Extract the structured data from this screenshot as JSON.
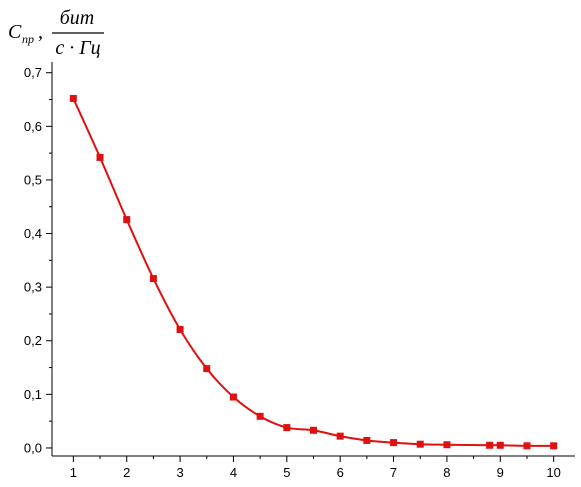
{
  "chart_data": {
    "type": "line",
    "ylabel": {
      "symbol": "C",
      "subscript": "пр",
      "separator": ",",
      "numerator": "бит",
      "denominator": "с · Гц"
    },
    "xlabel": "",
    "xlim": [
      0.6,
      10.4
    ],
    "ylim": [
      -0.015,
      0.72
    ],
    "x_ticks": [
      "1",
      "2",
      "3",
      "4",
      "5",
      "6",
      "7",
      "8",
      "9",
      "10"
    ],
    "y_ticks": [
      "0,0",
      "0,1",
      "0,2",
      "0,3",
      "0,4",
      "0,5",
      "0,6",
      "0,7"
    ],
    "grid": false,
    "legend": "none",
    "series": [
      {
        "color": "#e01010",
        "marker": "square",
        "x": [
          1,
          1.5,
          2,
          2.5,
          3,
          3.5,
          4,
          4.5,
          5,
          5.5,
          6,
          6.5,
          7,
          7.5,
          8,
          8.8,
          9,
          9.5,
          10
        ],
        "y": [
          0.652,
          0.542,
          0.426,
          0.316,
          0.221,
          0.148,
          0.095,
          0.059,
          0.038,
          0.033,
          0.022,
          0.014,
          0.01,
          0.007,
          0.006,
          0.005,
          0.005,
          0.004,
          0.004
        ]
      }
    ]
  }
}
